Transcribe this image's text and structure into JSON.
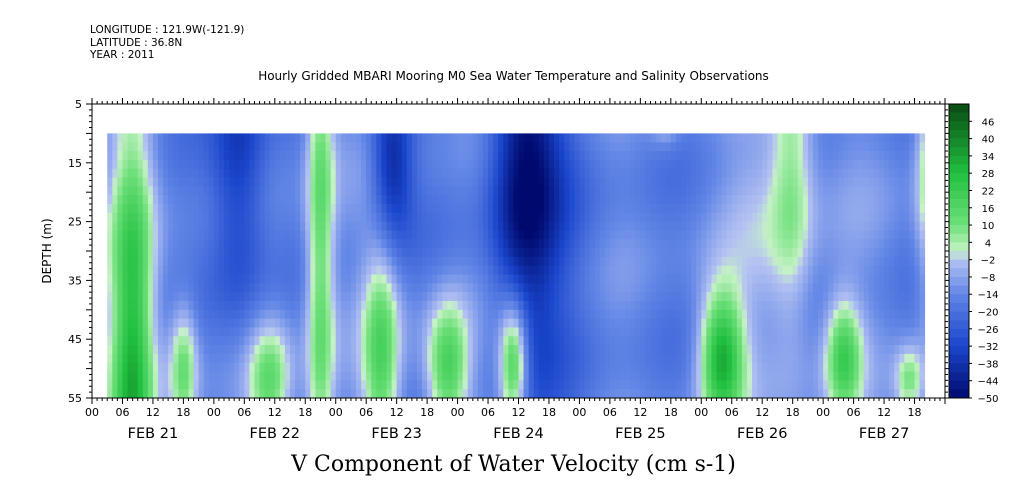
{
  "header": {
    "longitude": "LONGITUDE : 121.9W(-121.9)",
    "latitude": "LATITUDE : 36.8N",
    "year": "YEAR : 2011",
    "title": "Hourly Gridded MBARI Mooring M0 Sea Water Temperature and Salinity Observations"
  },
  "chart_data": {
    "type": "heatmap",
    "title": "Hourly Gridded MBARI Mooring M0 Sea Water Temperature and Salinity Observations",
    "variable_label": "V Component of Water Velocity (cm s-1)",
    "ylabel": "DEPTH (m)",
    "ylim": [
      55,
      5
    ],
    "y_ticks": [
      5,
      15,
      25,
      35,
      45,
      55
    ],
    "x_hour_ticks": [
      "00",
      "06",
      "12",
      "18",
      "00",
      "06",
      "12",
      "18",
      "00",
      "06",
      "12",
      "18",
      "00",
      "06",
      "12",
      "18",
      "00",
      "06",
      "12",
      "18",
      "00",
      "06",
      "12",
      "18",
      "00",
      "06",
      "12",
      "18"
    ],
    "x_day_labels": [
      "FEB 21",
      "FEB 22",
      "FEB 23",
      "FEB 24",
      "FEB 25",
      "FEB 26",
      "FEB 27"
    ],
    "data_start_hour": 3,
    "data_end_hour": 164,
    "data_top_depth": 10,
    "colorbar": {
      "levels": [
        "46",
        "40",
        "34",
        "28",
        "22",
        "16",
        "10",
        "4",
        "-2",
        "-8",
        "-14",
        "-20",
        "-26",
        "-32",
        "-38",
        "-44",
        "-50"
      ],
      "min": -50,
      "max": 52,
      "color_stops": [
        {
          "v": -50,
          "c": "#000a6e"
        },
        {
          "v": -32,
          "c": "#1a46cc"
        },
        {
          "v": -14,
          "c": "#6286e6"
        },
        {
          "v": -2,
          "c": "#b4c2f2"
        },
        {
          "v": 1,
          "c": "#c6f2c6"
        },
        {
          "v": 10,
          "c": "#6ee07a"
        },
        {
          "v": 28,
          "c": "#20c040"
        },
        {
          "v": 52,
          "c": "#0a4a12"
        }
      ]
    },
    "field_features": [
      {
        "t": 8,
        "d": 50,
        "sx": 3,
        "sd": 30,
        "v": 28
      },
      {
        "t": 18,
        "d": 50,
        "sx": 2,
        "sd": 8,
        "v": 14
      },
      {
        "t": 29,
        "d": 15,
        "sx": 4,
        "sd": 20,
        "v": -38
      },
      {
        "t": 35,
        "d": 52,
        "sx": 3,
        "sd": 7,
        "v": 12
      },
      {
        "t": 45,
        "d": 30,
        "sx": 2,
        "sd": 40,
        "v": 16
      },
      {
        "t": 59,
        "d": 15,
        "sx": 3,
        "sd": 10,
        "v": -44
      },
      {
        "t": 57,
        "d": 48,
        "sx": 2.5,
        "sd": 14,
        "v": 14
      },
      {
        "t": 70,
        "d": 50,
        "sx": 3,
        "sd": 8,
        "v": 22
      },
      {
        "t": 85,
        "d": 15,
        "sx": 5,
        "sd": 25,
        "v": -50
      },
      {
        "t": 83,
        "d": 49,
        "sx": 2,
        "sd": 7,
        "v": 28
      },
      {
        "t": 96,
        "d": 30,
        "sx": 6,
        "sd": 30,
        "v": -20
      },
      {
        "t": 113,
        "d": 5,
        "sx": 2,
        "sd": 4,
        "v": 10
      },
      {
        "t": 124,
        "d": 48,
        "sx": 3,
        "sd": 8,
        "v": 30
      },
      {
        "t": 133,
        "d": 25,
        "sx": 5,
        "sd": 20,
        "v": -6
      },
      {
        "t": 138,
        "d": 10,
        "sx": 3,
        "sd": 25,
        "v": 8
      },
      {
        "t": 148,
        "d": 48,
        "sx": 2.5,
        "sd": 7,
        "v": 18
      },
      {
        "t": 165,
        "d": 15,
        "sx": 2,
        "sd": 18,
        "v": 10
      },
      {
        "t": 161,
        "d": 52,
        "sx": 2,
        "sd": 4,
        "v": 10
      }
    ]
  }
}
